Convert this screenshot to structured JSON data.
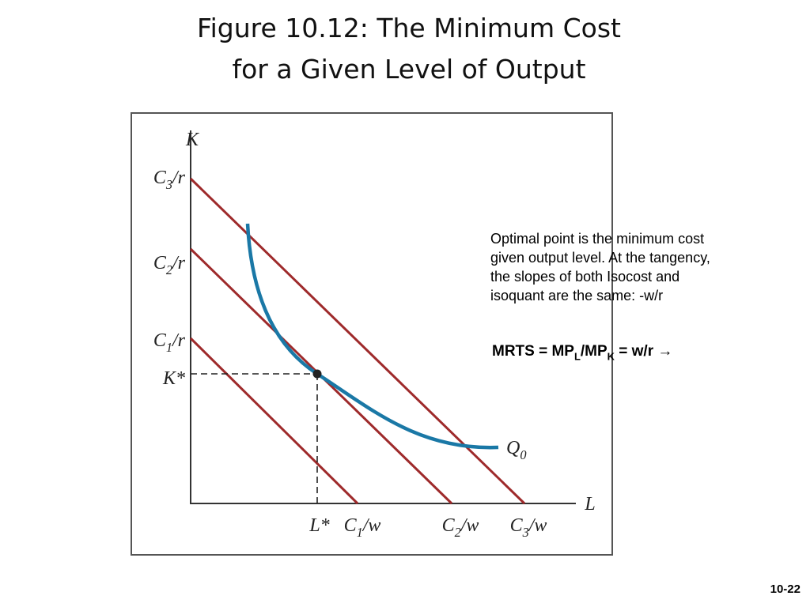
{
  "title": [
    "Figure 10.12: The Minimum Cost",
    "for a Given Level of Output"
  ],
  "diagram": {
    "axis_y": [
      "K"
    ],
    "axis_x": [
      "L"
    ],
    "y_labels": [
      [
        "C",
        "3",
        "/r"
      ],
      [
        "C",
        "2",
        "/r"
      ],
      [
        "C",
        "1",
        "/r"
      ],
      [
        "K*"
      ]
    ],
    "x_labels": [
      [
        "L*"
      ],
      [
        "C",
        "1",
        "/w"
      ],
      [
        "C",
        "2",
        "/w"
      ],
      [
        "C",
        "3",
        "/w"
      ]
    ],
    "curve_label": [
      "Q",
      "0"
    ]
  },
  "note": [
    "Optimal point is the minimum cost",
    "given output level. At the tangency,",
    "the slopes of both Isocost and",
    "isoquant are the same: -w/r"
  ],
  "formula": [
    "MRTS = MP",
    "L",
    "/MP",
    "K",
    " = w/r →"
  ],
  "slide_number": "10-22"
}
